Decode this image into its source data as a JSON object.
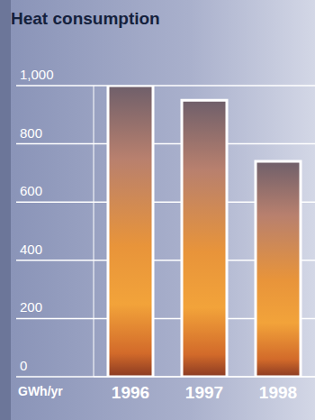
{
  "chart_data": {
    "type": "bar",
    "title": "Heat consumption",
    "ylabel": "GWh/yr",
    "categories": [
      "1996",
      "1997",
      "1998"
    ],
    "values": [
      1000,
      950,
      740
    ],
    "color": "#e8943a",
    "ylim": [
      0,
      1000
    ],
    "yticks": [
      0,
      200,
      400,
      600,
      800,
      {
        "value": 1000,
        "label": "1,000"
      }
    ],
    "grid": true
  }
}
